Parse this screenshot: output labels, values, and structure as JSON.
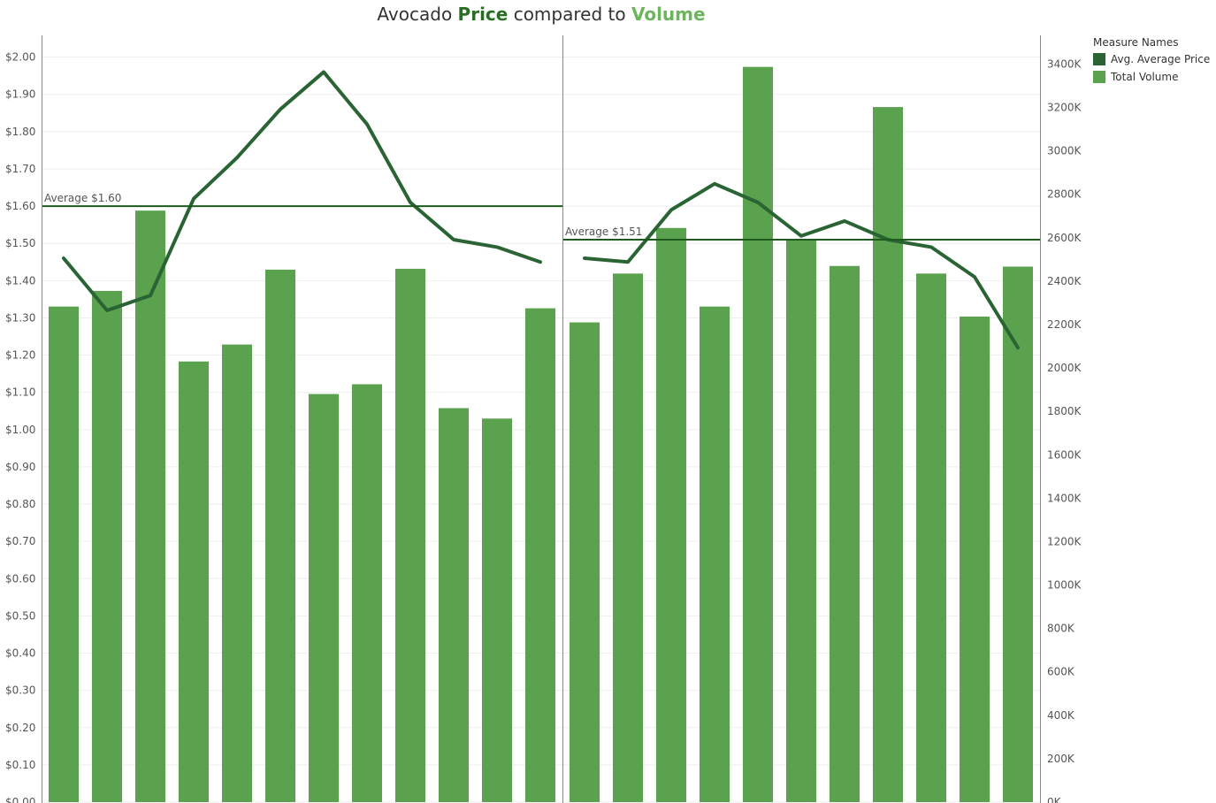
{
  "chart_data": {
    "type": "bar-line-combo",
    "title": {
      "prefix": "Avocado ",
      "price_word": "Price",
      "middle": " compared to ",
      "volume_word": "Volume"
    },
    "colors": {
      "price": "#2a6435",
      "volume": "#5aa24d",
      "reference": "#1e5a1e",
      "title_price": "#2a6e24",
      "title_volume": "#6cb55d",
      "grid": "#eeeeee",
      "axis_text": "#555555"
    },
    "legend": {
      "title": "Measure Names",
      "items": [
        {
          "label": "Avg. Average Price",
          "color": "#2a6435"
        },
        {
          "label": "Total Volume",
          "color": "#5aa24d"
        }
      ],
      "placement": "top-right"
    },
    "left_axis": {
      "ylim": [
        0,
        2.0
      ],
      "ticks": [
        "$0.00",
        "$0.10",
        "$0.20",
        "$0.30",
        "$0.40",
        "$0.50",
        "$0.60",
        "$0.70",
        "$0.80",
        "$0.90",
        "$1.00",
        "$1.10",
        "$1.20",
        "$1.30",
        "$1.40",
        "$1.50",
        "$1.60",
        "$1.70",
        "$1.80",
        "$1.90",
        "$2.00"
      ]
    },
    "right_axis": {
      "ylim": [
        0,
        3400000
      ],
      "ticks": [
        "0K",
        "200K",
        "400K",
        "600K",
        "800K",
        "1000K",
        "1200K",
        "1400K",
        "1600K",
        "1800K",
        "2000K",
        "2200K",
        "2400K",
        "2600K",
        "2800K",
        "3000K",
        "3200K",
        "3400K"
      ]
    },
    "grid": true,
    "panels": [
      {
        "reference_line": {
          "value": 1.6,
          "label": "Average $1.60"
        },
        "series": [
          {
            "name": "Total Volume",
            "kind": "bar",
            "values": [
              2283000,
              2355000,
              2725000,
              2030000,
              2108000,
              2453000,
              1880000,
              1925000,
              2457000,
              1815000,
              1767000,
              2275000
            ]
          },
          {
            "name": "Avg. Average Price",
            "kind": "line",
            "values": [
              1.46,
              1.32,
              1.36,
              1.62,
              1.73,
              1.86,
              1.96,
              1.82,
              1.61,
              1.51,
              1.49,
              1.45
            ]
          }
        ]
      },
      {
        "reference_line": {
          "value": 1.51,
          "label": "Average $1.51"
        },
        "series": [
          {
            "name": "Total Volume",
            "kind": "bar",
            "values": [
              2210000,
              2435000,
              2645000,
              2283000,
              3387000,
              2587000,
              2470000,
              3202000,
              2435000,
              2237000,
              2467000
            ]
          },
          {
            "name": "Avg. Average Price",
            "kind": "line",
            "values": [
              1.46,
              1.45,
              1.59,
              1.66,
              1.61,
              1.52,
              1.56,
              1.51,
              1.49,
              1.41,
              1.22
            ]
          }
        ]
      }
    ]
  }
}
